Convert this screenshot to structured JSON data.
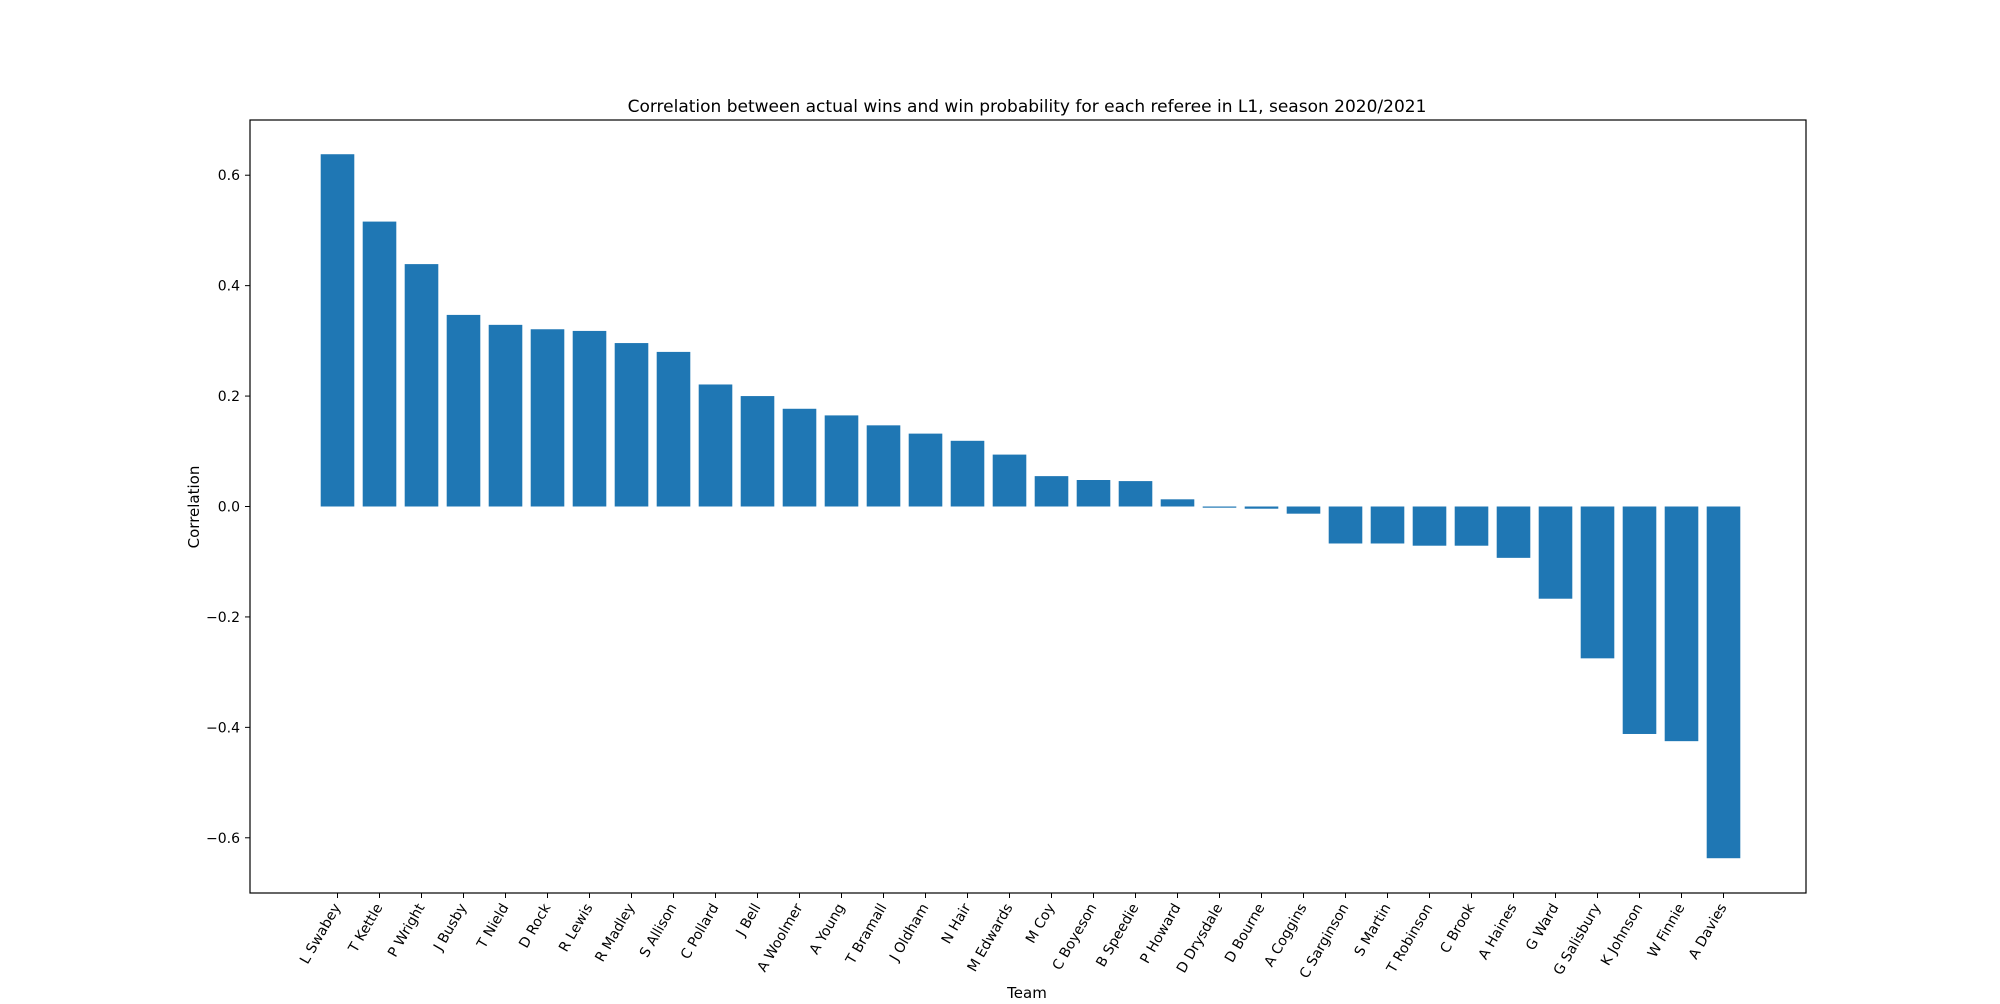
{
  "chart_data": {
    "type": "bar",
    "title": "Correlation between actual wins and win probability for each referee in L1, season 2020/2021",
    "xlabel": "Team",
    "ylabel": "Correlation",
    "ylim": [
      -0.7,
      0.7
    ],
    "yticks": [
      -0.6,
      -0.4,
      -0.2,
      0.0,
      0.2,
      0.4,
      0.6
    ],
    "ytick_labels": [
      "−0.6",
      "−0.4",
      "−0.2",
      "0.0",
      "0.2",
      "0.4",
      "0.6"
    ],
    "grid": false,
    "bar_color": "#1f77b4",
    "categories": [
      "L Swabey",
      "T Kettle",
      "P Wright",
      "J Busby",
      "T Nield",
      "D Rock",
      "R Lewis",
      "R Madley",
      "S Allison",
      "C Pollard",
      "J Bell",
      "A Woolmer",
      "A Young",
      "T Bramall",
      "J Oldham",
      "N Hair",
      "M Edwards",
      "M Coy",
      "C Boyeson",
      "B Speedie",
      "P Howard",
      "D Drysdale",
      "D Bourne",
      "A Coggins",
      "C Sarginson",
      "S Martin",
      "T Robinson",
      "C Brook",
      "A Haines",
      "G Ward",
      "G Salisbury",
      "K Johnson",
      "W Finnie",
      "A Davies"
    ],
    "values": [
      0.638,
      0.516,
      0.439,
      0.347,
      0.329,
      0.321,
      0.318,
      0.296,
      0.28,
      0.221,
      0.2,
      0.177,
      0.165,
      0.147,
      0.132,
      0.119,
      0.094,
      0.055,
      0.048,
      0.046,
      0.013,
      -0.002,
      -0.004,
      -0.013,
      -0.067,
      -0.067,
      -0.071,
      -0.071,
      -0.093,
      -0.167,
      -0.275,
      -0.412,
      -0.425,
      -0.637
    ]
  }
}
